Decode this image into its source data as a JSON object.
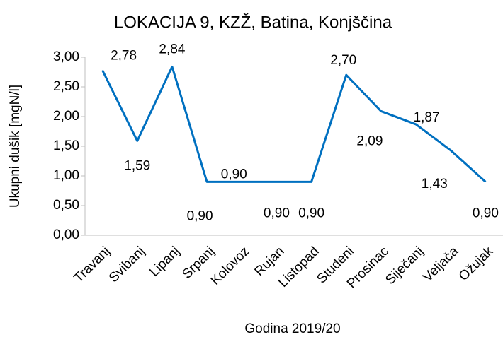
{
  "chart_data": {
    "type": "line",
    "title": "LOKACIJA 9, KZŽ, Batina, Konjščina",
    "x_label": "Godina 2019/20",
    "y_label": "Ukupni dušik [mgN/l]",
    "categories": [
      "Travanj",
      "Svibanj",
      "Lipanj",
      "Srpanj",
      "Kolovoz",
      "Rujan",
      "Listopad",
      "Studeni",
      "Prosinac",
      "Siječanj",
      "Veljača",
      "Ožujak"
    ],
    "series": [
      {
        "name": "Ukupni dušik",
        "color": "#0070c0",
        "values": [
          2.78,
          1.59,
          2.84,
          0.9,
          0.9,
          0.9,
          0.9,
          2.7,
          2.09,
          1.87,
          1.43,
          0.9
        ],
        "value_labels": [
          "2,78",
          "1,59",
          "2,84",
          "0,90",
          "0,90",
          "0,90",
          "0,90",
          "2,70",
          "2,09",
          "1,87",
          "1,43",
          "0,90"
        ]
      }
    ],
    "ylim": [
      0,
      3
    ],
    "yticks": [
      {
        "value": 0,
        "label": "0,00"
      },
      {
        "value": 0.5,
        "label": "0,50"
      },
      {
        "value": 1,
        "label": "1,00"
      },
      {
        "value": 1.5,
        "label": "1,50"
      },
      {
        "value": 2,
        "label": "2,00"
      },
      {
        "value": 2.5,
        "label": "2,50"
      },
      {
        "value": 3,
        "label": "3,00"
      }
    ],
    "grid": false
  }
}
